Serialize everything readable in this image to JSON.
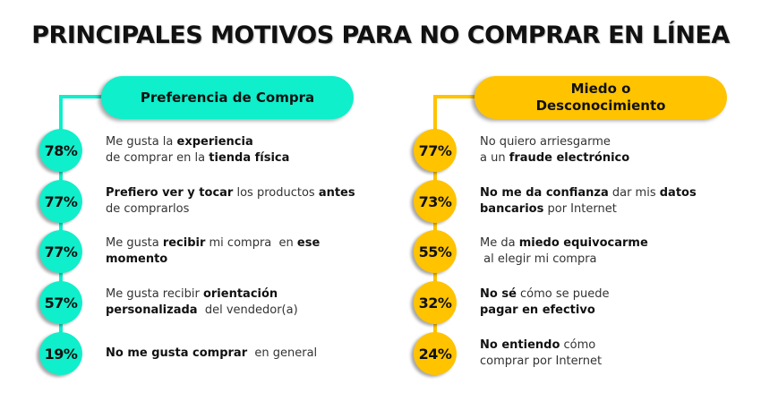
{
  "title": "PRINCIPALES MOTIVOS PARA NO COMPRAR EN LÍNEA",
  "colors": {
    "teal": "#0FEFCB",
    "yellow": "#FFC300",
    "text": "#111111"
  },
  "groups": [
    {
      "heading": "Preferencia de Compra",
      "color": "#0FEFCB",
      "items": [
        {
          "percent": "78%",
          "lines": [
            [
              {
                "t": "Me gusta la ",
                "b": false
              },
              {
                "t": "experiencia",
                "b": true
              }
            ],
            [
              {
                "t": "de comprar en la ",
                "b": false
              },
              {
                "t": "tienda física",
                "b": true
              }
            ]
          ]
        },
        {
          "percent": "77%",
          "lines": [
            [
              {
                "t": "Prefiero ver y tocar",
                "b": true
              },
              {
                "t": " los productos ",
                "b": false
              },
              {
                "t": "antes",
                "b": true
              }
            ],
            [
              {
                "t": "de comprarlos",
                "b": false
              }
            ]
          ]
        },
        {
          "percent": "77%",
          "lines": [
            [
              {
                "t": "Me gusta ",
                "b": false
              },
              {
                "t": "recibir",
                "b": true
              },
              {
                "t": " mi compra  en ",
                "b": false
              },
              {
                "t": "ese",
                "b": true
              }
            ],
            [
              {
                "t": "momento",
                "b": true
              }
            ]
          ]
        },
        {
          "percent": "57%",
          "lines": [
            [
              {
                "t": "Me gusta recibir ",
                "b": false
              },
              {
                "t": "orientación",
                "b": true
              }
            ],
            [
              {
                "t": "personalizada",
                "b": true
              },
              {
                "t": "  del vendedor(a)",
                "b": false
              }
            ]
          ]
        },
        {
          "percent": "19%",
          "lines": [
            [
              {
                "t": "No me gusta comprar",
                "b": true
              },
              {
                "t": "  en general",
                "b": false
              }
            ]
          ]
        }
      ]
    },
    {
      "heading": "Miedo o Desconocimiento",
      "heading_lines": [
        "Miedo o",
        "Desconocimiento"
      ],
      "color": "#FFC300",
      "items": [
        {
          "percent": "77%",
          "lines": [
            [
              {
                "t": "No quiero arriesgarme",
                "b": false
              }
            ],
            [
              {
                "t": "a un ",
                "b": false
              },
              {
                "t": "fraude electrónico",
                "b": true
              }
            ]
          ]
        },
        {
          "percent": "73%",
          "lines": [
            [
              {
                "t": "No me da confianza",
                "b": true
              },
              {
                "t": " dar mis ",
                "b": false
              },
              {
                "t": "datos",
                "b": true
              }
            ],
            [
              {
                "t": "bancarios",
                "b": true
              },
              {
                "t": " por Internet",
                "b": false
              }
            ]
          ]
        },
        {
          "percent": "55%",
          "lines": [
            [
              {
                "t": "Me da ",
                "b": false
              },
              {
                "t": "miedo equivocarme",
                "b": true
              }
            ],
            [
              {
                "t": " al elegir mi compra",
                "b": false
              }
            ]
          ]
        },
        {
          "percent": "32%",
          "lines": [
            [
              {
                "t": "No sé",
                "b": true
              },
              {
                "t": " cómo se puede",
                "b": false
              }
            ],
            [
              {
                "t": "pagar en efectivo",
                "b": true
              }
            ]
          ]
        },
        {
          "percent": "24%",
          "lines": [
            [
              {
                "t": "No entiendo",
                "b": true
              },
              {
                "t": " cómo",
                "b": false
              }
            ],
            [
              {
                "t": "comprar por Internet",
                "b": false
              }
            ]
          ]
        }
      ]
    }
  ]
}
